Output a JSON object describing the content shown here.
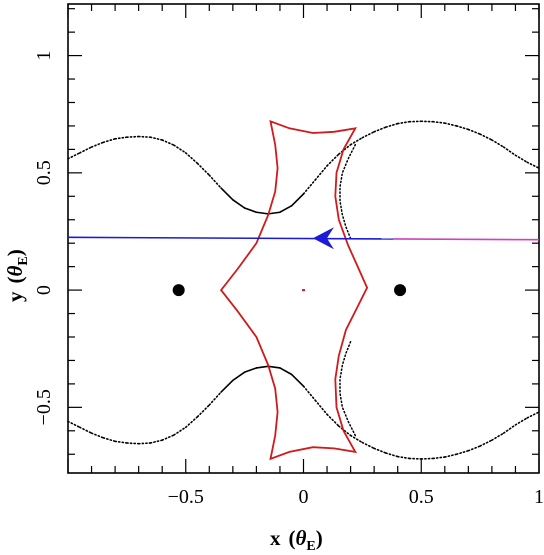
{
  "chart_data": {
    "type": "scatter",
    "title": "",
    "xlabel": {
      "main": "x",
      "sym": "θ",
      "sub": "E"
    },
    "ylabel": {
      "main": "y",
      "sym": "θ",
      "sub": "E"
    },
    "xlim": [
      -1.0,
      1.0
    ],
    "ylim": [
      -0.78,
      1.22
    ],
    "xticks": [
      {
        "value": -0.5,
        "label": "−0.5"
      },
      {
        "value": 0,
        "label": "0"
      },
      {
        "value": 0.5,
        "label": "0.5"
      },
      {
        "value": 1,
        "label": "1"
      }
    ],
    "yticks": [
      {
        "value": -0.5,
        "label": "−0.5"
      },
      {
        "value": 0,
        "label": "0"
      },
      {
        "value": 0.5,
        "label": "0.5"
      },
      {
        "value": 1,
        "label": "1"
      }
    ],
    "grid": false,
    "colors": {
      "critical_curve": "#000000",
      "caustic": "#d11a1a",
      "trajectory": "#1a1ad8",
      "trajectory_tail": "#d040c0",
      "lens": "#000000"
    },
    "lenses": [
      {
        "x": -0.53,
        "y": 0.0
      },
      {
        "x": 0.41,
        "y": 0.0
      }
    ],
    "critical_curve_upper": [
      [
        -1.0,
        0.56
      ],
      [
        -0.95,
        0.585
      ],
      [
        -0.9,
        0.61
      ],
      [
        -0.85,
        0.63
      ],
      [
        -0.8,
        0.645
      ],
      [
        -0.75,
        0.652
      ],
      [
        -0.7,
        0.655
      ],
      [
        -0.65,
        0.652
      ],
      [
        -0.6,
        0.64
      ],
      [
        -0.55,
        0.618
      ],
      [
        -0.5,
        0.585
      ],
      [
        -0.45,
        0.54
      ],
      [
        -0.4,
        0.49
      ],
      [
        -0.35,
        0.435
      ],
      [
        -0.3,
        0.385
      ],
      [
        -0.25,
        0.35
      ],
      [
        -0.2,
        0.332
      ],
      [
        -0.15,
        0.325
      ],
      [
        -0.1,
        0.332
      ],
      [
        -0.05,
        0.36
      ],
      [
        0.0,
        0.41
      ],
      [
        0.05,
        0.47
      ],
      [
        0.1,
        0.53
      ],
      [
        0.15,
        0.58
      ],
      [
        0.2,
        0.62
      ],
      [
        0.25,
        0.65
      ],
      [
        0.3,
        0.675
      ],
      [
        0.35,
        0.695
      ],
      [
        0.4,
        0.71
      ],
      [
        0.45,
        0.718
      ],
      [
        0.5,
        0.72
      ],
      [
        0.55,
        0.718
      ],
      [
        0.6,
        0.712
      ],
      [
        0.65,
        0.7
      ],
      [
        0.7,
        0.685
      ],
      [
        0.75,
        0.665
      ],
      [
        0.8,
        0.64
      ],
      [
        0.85,
        0.61
      ],
      [
        0.9,
        0.575
      ],
      [
        0.95,
        0.545
      ],
      [
        1.0,
        0.52
      ]
    ],
    "critical_curve_upper_inner": [
      [
        0.22,
        0.62
      ],
      [
        0.19,
        0.56
      ],
      [
        0.165,
        0.5
      ],
      [
        0.155,
        0.44
      ],
      [
        0.155,
        0.38
      ],
      [
        0.165,
        0.32
      ],
      [
        0.18,
        0.27
      ],
      [
        0.2,
        0.22
      ]
    ],
    "critical_curve_lower": [
      [
        -1.0,
        -0.56
      ],
      [
        -0.95,
        -0.585
      ],
      [
        -0.9,
        -0.61
      ],
      [
        -0.85,
        -0.63
      ],
      [
        -0.8,
        -0.645
      ],
      [
        -0.75,
        -0.652
      ],
      [
        -0.7,
        -0.655
      ],
      [
        -0.65,
        -0.652
      ],
      [
        -0.6,
        -0.64
      ],
      [
        -0.55,
        -0.618
      ],
      [
        -0.5,
        -0.585
      ],
      [
        -0.45,
        -0.54
      ],
      [
        -0.4,
        -0.49
      ],
      [
        -0.35,
        -0.435
      ],
      [
        -0.3,
        -0.385
      ],
      [
        -0.25,
        -0.35
      ],
      [
        -0.2,
        -0.332
      ],
      [
        -0.15,
        -0.325
      ],
      [
        -0.1,
        -0.332
      ],
      [
        -0.05,
        -0.36
      ],
      [
        0.0,
        -0.41
      ],
      [
        0.05,
        -0.47
      ],
      [
        0.1,
        -0.53
      ],
      [
        0.15,
        -0.58
      ],
      [
        0.2,
        -0.62
      ],
      [
        0.25,
        -0.65
      ],
      [
        0.3,
        -0.675
      ],
      [
        0.35,
        -0.695
      ],
      [
        0.4,
        -0.71
      ],
      [
        0.45,
        -0.718
      ],
      [
        0.5,
        -0.72
      ],
      [
        0.55,
        -0.718
      ],
      [
        0.6,
        -0.712
      ],
      [
        0.65,
        -0.7
      ],
      [
        0.7,
        -0.685
      ],
      [
        0.75,
        -0.665
      ],
      [
        0.8,
        -0.64
      ],
      [
        0.85,
        -0.61
      ],
      [
        0.9,
        -0.575
      ],
      [
        0.95,
        -0.545
      ],
      [
        1.0,
        -0.52
      ]
    ],
    "caustic": [
      [
        -0.14,
        0.72
      ],
      [
        -0.06,
        0.69
      ],
      [
        0.04,
        0.67
      ],
      [
        0.13,
        0.675
      ],
      [
        0.22,
        0.69
      ],
      [
        0.17,
        0.6
      ],
      [
        0.14,
        0.5
      ],
      [
        0.135,
        0.4
      ],
      [
        0.15,
        0.3
      ],
      [
        0.19,
        0.19
      ],
      [
        0.23,
        0.1
      ],
      [
        0.27,
        0.01
      ],
      [
        0.23,
        -0.07
      ],
      [
        0.18,
        -0.17
      ],
      [
        0.15,
        -0.28
      ],
      [
        0.135,
        -0.38
      ],
      [
        0.14,
        -0.5
      ],
      [
        0.17,
        -0.6
      ],
      [
        0.22,
        -0.69
      ],
      [
        0.13,
        -0.675
      ],
      [
        0.04,
        -0.67
      ],
      [
        -0.06,
        -0.69
      ],
      [
        -0.14,
        -0.72
      ],
      [
        -0.12,
        -0.62
      ],
      [
        -0.11,
        -0.52
      ],
      [
        -0.12,
        -0.42
      ],
      [
        -0.15,
        -0.32
      ],
      [
        -0.2,
        -0.2
      ],
      [
        -0.28,
        -0.09
      ],
      [
        -0.35,
        0.0
      ],
      [
        -0.28,
        0.09
      ],
      [
        -0.2,
        0.2
      ],
      [
        -0.15,
        0.32
      ],
      [
        -0.12,
        0.42
      ],
      [
        -0.11,
        0.52
      ],
      [
        -0.12,
        0.62
      ],
      [
        -0.14,
        0.72
      ]
    ],
    "trajectory": [
      [
        -1.0,
        0.225
      ],
      [
        1.0,
        0.215
      ]
    ],
    "trajectory_tail_from_x": 0.38,
    "direction_arrow": {
      "x": 0.04,
      "y": 0.221,
      "direction": "left"
    },
    "center_marker": {
      "x": 0.0,
      "y": 0.0
    }
  }
}
